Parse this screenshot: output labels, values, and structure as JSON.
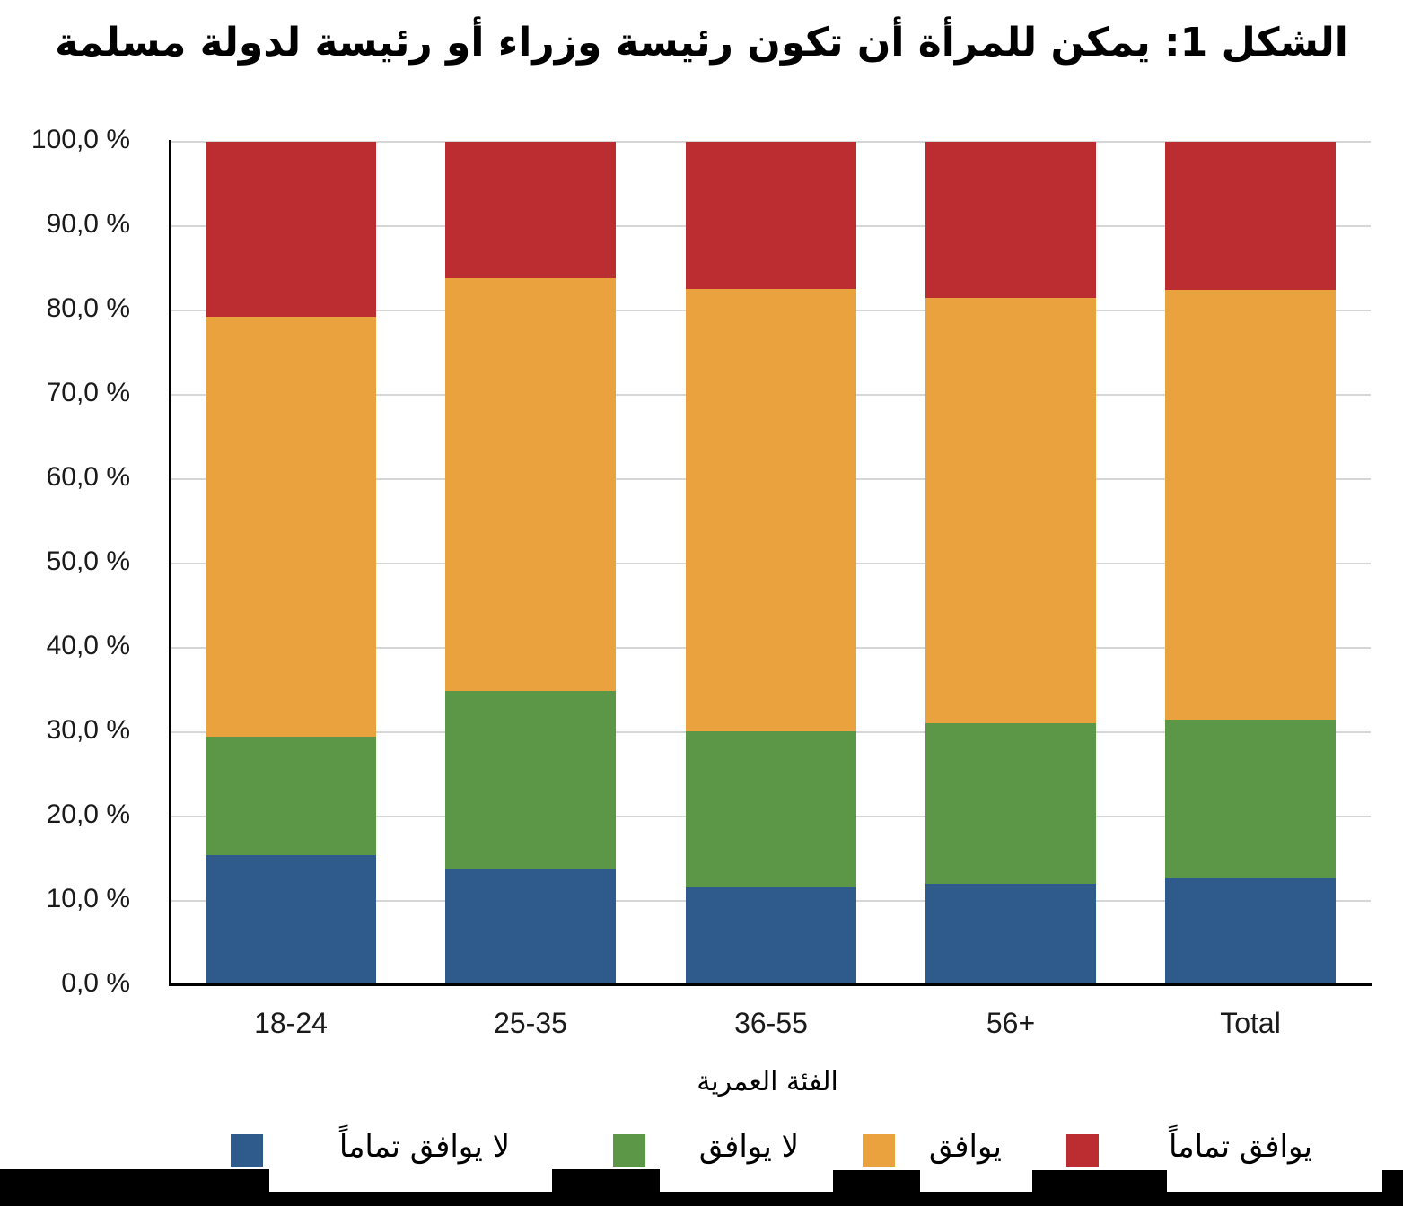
{
  "chart_data": {
    "type": "bar",
    "stacked": true,
    "title": "الشكل 1: يمكن للمرأة أن تكون رئيسة وزراء أو رئيسة لدولة مسلمة",
    "xlabel": "الفئة العمرية",
    "ylabel": "",
    "ylim": [
      0,
      100
    ],
    "yticks": [
      "0,0 %",
      "10,0 %",
      "20,0 %",
      "30,0 %",
      "40,0 %",
      "50,0 %",
      "60,0 %",
      "70,0 %",
      "80,0 %",
      "90,0 %",
      "100,0 %"
    ],
    "grid": true,
    "legend_position": "bottom",
    "categories": [
      "18-24",
      "25-35",
      "36-55",
      "56+",
      "Total"
    ],
    "series": [
      {
        "name": "لا يوافق تماماً",
        "color": "#2e5a8c",
        "values": [
          15.4,
          13.8,
          11.6,
          12.0,
          12.8
        ]
      },
      {
        "name": "لا يوافق",
        "color": "#5c9647",
        "values": [
          14.1,
          21.1,
          18.5,
          19.1,
          18.7
        ]
      },
      {
        "name": "يوافق",
        "color": "#e9a23d",
        "values": [
          49.8,
          48.9,
          52.5,
          50.4,
          50.9
        ]
      },
      {
        "name": "يوافق تماماً",
        "color": "#bb2d31",
        "values": [
          20.7,
          16.2,
          17.4,
          18.5,
          17.6
        ]
      }
    ]
  }
}
